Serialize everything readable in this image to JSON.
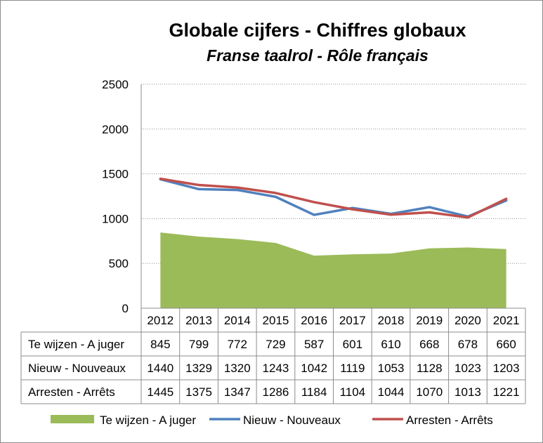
{
  "chart_data": {
    "type": "area",
    "title": "Globale cijfers - Chiffres globaux",
    "subtitle": "Franse taalrol - Rôle français",
    "categories": [
      "2012",
      "2013",
      "2014",
      "2015",
      "2016",
      "2017",
      "2018",
      "2019",
      "2020",
      "2021"
    ],
    "ylim": [
      0,
      2500
    ],
    "yticks": [
      0,
      500,
      1000,
      1500,
      2000,
      2500
    ],
    "grid": true,
    "legend_position": "bottom",
    "series": [
      {
        "name": "Te wijzen - A juger",
        "kind": "area",
        "color": "#9bbb59",
        "values": [
          845,
          799,
          772,
          729,
          587,
          601,
          610,
          668,
          678,
          660
        ]
      },
      {
        "name": "Nieuw - Nouveaux",
        "kind": "line",
        "color": "#4f81bd",
        "values": [
          1440,
          1329,
          1320,
          1243,
          1042,
          1119,
          1053,
          1128,
          1023,
          1203
        ]
      },
      {
        "name": "Arresten - Arrêts",
        "kind": "line",
        "color": "#c0504d",
        "values": [
          1445,
          1375,
          1347,
          1286,
          1184,
          1104,
          1044,
          1070,
          1013,
          1221
        ]
      }
    ]
  }
}
